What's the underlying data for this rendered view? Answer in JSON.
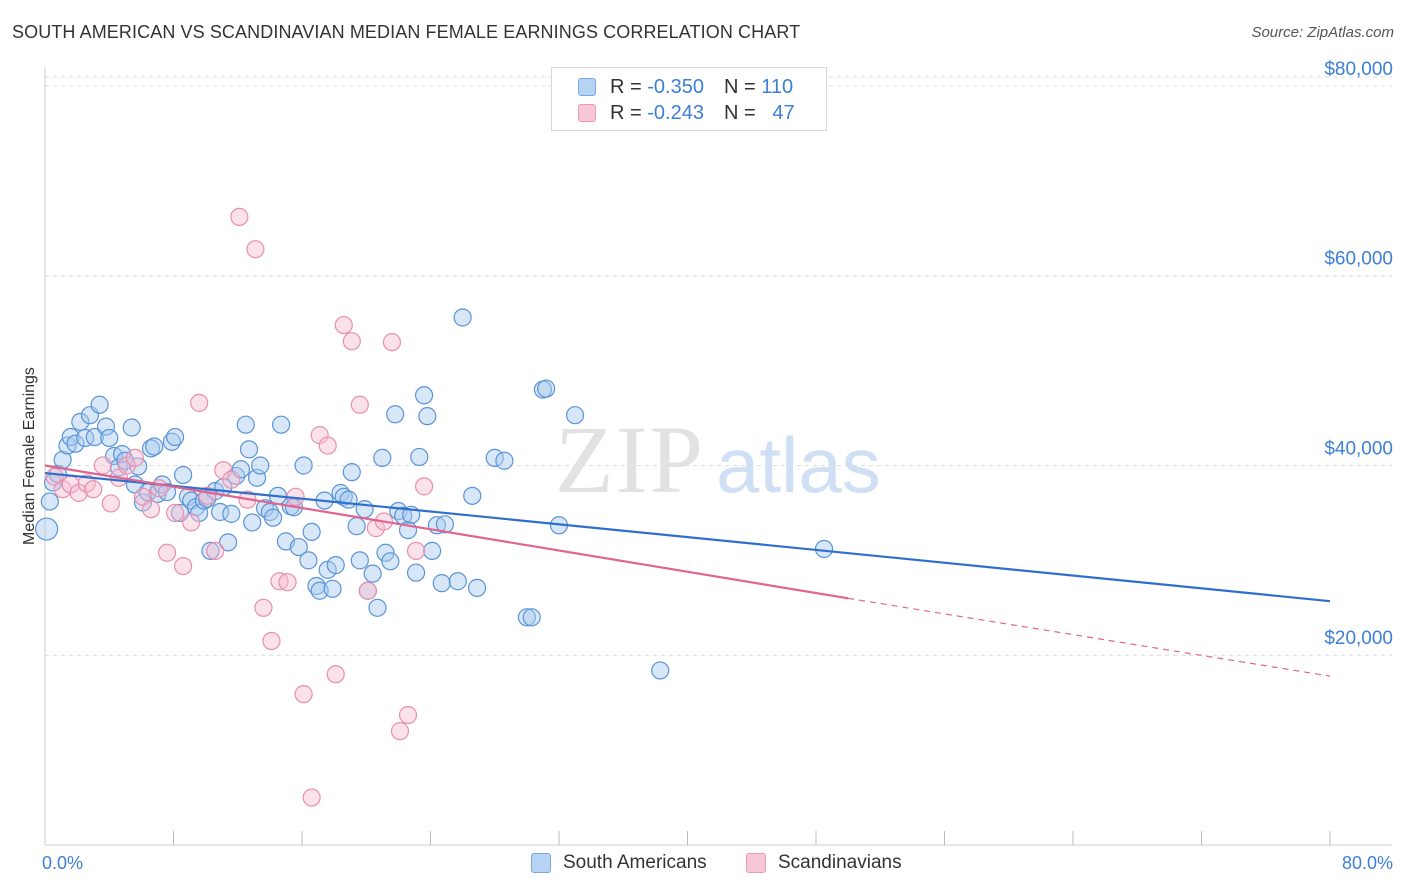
{
  "header": {
    "title": "SOUTH AMERICAN VS SCANDINAVIAN MEDIAN FEMALE EARNINGS CORRELATION CHART",
    "source": "Source: ZipAtlas.com"
  },
  "legend": {
    "rows": [
      {
        "r_label": "R =",
        "r_value": "-0.350",
        "n_label": "N =",
        "n_value": "110"
      },
      {
        "r_label": "R =",
        "r_value": "-0.243",
        "n_label": "N =",
        "n_value": "47"
      }
    ]
  },
  "watermark": {
    "zip": "ZIP",
    "atlas": "atlas"
  },
  "colors": {
    "blue_fill": "#a9c9f0",
    "blue_stroke": "#5a94d6",
    "blue_line": "#2f6fcc",
    "pink_fill": "#f6bcd0",
    "pink_stroke": "#e88fb0",
    "pink_line": "#e0648f",
    "tick_text": "#3d7fd6",
    "grid": "#dcdcdc"
  },
  "chart_data": {
    "type": "scatter",
    "title": "SOUTH AMERICAN VS SCANDINAVIAN MEDIAN FEMALE EARNINGS CORRELATION CHART",
    "xlabel": "",
    "ylabel": "Median Female Earnings",
    "xlim": [
      0,
      80
    ],
    "ylim": [
      0,
      82000
    ],
    "x_tick_labels": [
      "0.0%",
      "80.0%"
    ],
    "y_ticks": [
      20000,
      40000,
      60000,
      80000
    ],
    "y_tick_labels": [
      "$20,000",
      "$40,000",
      "$60,000",
      "$80,000"
    ],
    "grid": true,
    "legend_position": "top-center",
    "series": [
      {
        "name": "South Americans",
        "r": -0.35,
        "n": 110,
        "trend": {
          "x0": 0,
          "y0": 39200,
          "x1": 80,
          "y1": 25700
        },
        "points": [
          [
            0.1,
            33300
          ],
          [
            0.3,
            36200
          ],
          [
            0.5,
            38200
          ],
          [
            0.8,
            39100
          ],
          [
            1.1,
            40600
          ],
          [
            1.4,
            42100
          ],
          [
            1.6,
            43000
          ],
          [
            1.9,
            42300
          ],
          [
            2.2,
            44600
          ],
          [
            2.5,
            42900
          ],
          [
            2.8,
            45300
          ],
          [
            3.1,
            43000
          ],
          [
            3.4,
            46400
          ],
          [
            3.8,
            44100
          ],
          [
            4.0,
            42900
          ],
          [
            4.3,
            41000
          ],
          [
            4.6,
            39800
          ],
          [
            4.8,
            41200
          ],
          [
            5.0,
            40500
          ],
          [
            5.4,
            44000
          ],
          [
            5.6,
            38000
          ],
          [
            5.8,
            39900
          ],
          [
            6.1,
            36100
          ],
          [
            6.4,
            37200
          ],
          [
            6.6,
            41800
          ],
          [
            6.8,
            42000
          ],
          [
            7.0,
            37000
          ],
          [
            7.3,
            38000
          ],
          [
            7.6,
            37200
          ],
          [
            7.9,
            42500
          ],
          [
            8.1,
            43000
          ],
          [
            8.4,
            35000
          ],
          [
            8.6,
            39000
          ],
          [
            8.9,
            36700
          ],
          [
            9.1,
            36300
          ],
          [
            9.4,
            35600
          ],
          [
            9.6,
            35000
          ],
          [
            9.9,
            36300
          ],
          [
            10.1,
            36500
          ],
          [
            10.3,
            31000
          ],
          [
            10.6,
            37300
          ],
          [
            10.9,
            35100
          ],
          [
            11.1,
            37700
          ],
          [
            11.4,
            31900
          ],
          [
            11.6,
            34900
          ],
          [
            11.9,
            38900
          ],
          [
            12.2,
            39600
          ],
          [
            12.5,
            44300
          ],
          [
            12.7,
            41700
          ],
          [
            12.9,
            34000
          ],
          [
            13.2,
            38700
          ],
          [
            13.4,
            40000
          ],
          [
            13.7,
            35500
          ],
          [
            14.0,
            35100
          ],
          [
            14.2,
            34500
          ],
          [
            14.5,
            36800
          ],
          [
            14.7,
            44300
          ],
          [
            15.0,
            32000
          ],
          [
            15.3,
            35700
          ],
          [
            15.5,
            35600
          ],
          [
            15.8,
            31400
          ],
          [
            16.1,
            40000
          ],
          [
            16.4,
            30000
          ],
          [
            16.6,
            33000
          ],
          [
            16.9,
            27300
          ],
          [
            17.1,
            26800
          ],
          [
            17.4,
            36300
          ],
          [
            17.6,
            29000
          ],
          [
            17.9,
            27000
          ],
          [
            18.1,
            29500
          ],
          [
            18.4,
            37100
          ],
          [
            18.6,
            36700
          ],
          [
            18.9,
            36400
          ],
          [
            19.1,
            39300
          ],
          [
            19.4,
            33600
          ],
          [
            19.6,
            30000
          ],
          [
            19.9,
            35400
          ],
          [
            20.1,
            26800
          ],
          [
            20.4,
            28600
          ],
          [
            20.7,
            25000
          ],
          [
            21.0,
            40800
          ],
          [
            21.2,
            30800
          ],
          [
            21.5,
            29900
          ],
          [
            21.8,
            45400
          ],
          [
            22.0,
            35200
          ],
          [
            22.3,
            34700
          ],
          [
            22.6,
            33200
          ],
          [
            22.8,
            34800
          ],
          [
            23.1,
            28700
          ],
          [
            23.3,
            40900
          ],
          [
            23.6,
            47400
          ],
          [
            23.8,
            45200
          ],
          [
            24.1,
            31000
          ],
          [
            24.4,
            33700
          ],
          [
            24.7,
            27600
          ],
          [
            24.9,
            33800
          ],
          [
            25.7,
            27800
          ],
          [
            26.0,
            55600
          ],
          [
            26.6,
            36800
          ],
          [
            26.9,
            27100
          ],
          [
            28.0,
            40800
          ],
          [
            28.6,
            40500
          ],
          [
            30.0,
            24000
          ],
          [
            30.3,
            24000
          ],
          [
            31.0,
            48000
          ],
          [
            31.2,
            48100
          ],
          [
            32.0,
            33700
          ],
          [
            33.0,
            45300
          ],
          [
            38.3,
            18400
          ],
          [
            48.5,
            31200
          ]
        ]
      },
      {
        "name": "Scandinavians",
        "r": -0.243,
        "n": 47,
        "trend": {
          "x0": 0,
          "y0": 40000,
          "x1": 50,
          "y1": 26000,
          "dashed_x1": 80,
          "dashed_y1": 17800
        },
        "points": [
          [
            0.6,
            38800
          ],
          [
            1.1,
            37500
          ],
          [
            1.6,
            38000
          ],
          [
            2.1,
            37100
          ],
          [
            2.6,
            38100
          ],
          [
            3.0,
            37500
          ],
          [
            3.6,
            40000
          ],
          [
            4.1,
            36000
          ],
          [
            4.6,
            38700
          ],
          [
            5.1,
            40000
          ],
          [
            5.6,
            40800
          ],
          [
            6.1,
            36700
          ],
          [
            6.6,
            35400
          ],
          [
            7.1,
            37600
          ],
          [
            7.6,
            30800
          ],
          [
            8.1,
            35000
          ],
          [
            8.6,
            29400
          ],
          [
            9.1,
            34000
          ],
          [
            9.6,
            46600
          ],
          [
            10.1,
            36800
          ],
          [
            10.6,
            31000
          ],
          [
            11.1,
            39500
          ],
          [
            11.6,
            38500
          ],
          [
            12.1,
            66200
          ],
          [
            12.6,
            36400
          ],
          [
            13.1,
            62800
          ],
          [
            13.6,
            25000
          ],
          [
            14.1,
            21500
          ],
          [
            14.6,
            27800
          ],
          [
            15.1,
            27700
          ],
          [
            15.6,
            36700
          ],
          [
            16.1,
            15900
          ],
          [
            16.6,
            5000
          ],
          [
            17.1,
            43200
          ],
          [
            17.6,
            42100
          ],
          [
            18.1,
            18000
          ],
          [
            18.6,
            54800
          ],
          [
            19.1,
            53100
          ],
          [
            19.6,
            46400
          ],
          [
            20.1,
            26800
          ],
          [
            20.6,
            33400
          ],
          [
            21.1,
            34100
          ],
          [
            21.6,
            53000
          ],
          [
            22.1,
            12000
          ],
          [
            22.6,
            13700
          ],
          [
            23.1,
            31000
          ],
          [
            23.6,
            37800
          ]
        ]
      }
    ]
  }
}
